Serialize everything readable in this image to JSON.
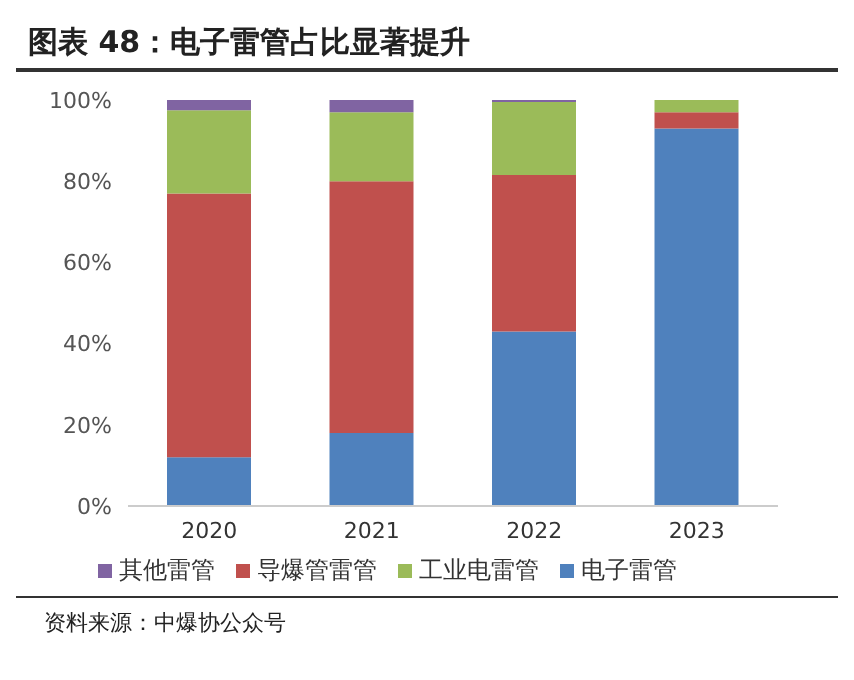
{
  "chart_data": {
    "type": "bar",
    "stacked": true,
    "title": "图表 48：电子雷管占比显著提升",
    "categories": [
      "2020",
      "2021",
      "2022",
      "2023"
    ],
    "series": [
      {
        "name": "电子雷管",
        "color": "#4f81bd",
        "values": [
          12,
          18,
          43,
          93
        ]
      },
      {
        "name": "导爆管雷管",
        "color": "#c0504d",
        "values": [
          65,
          62,
          38.5,
          4
        ]
      },
      {
        "name": "工业电雷管",
        "color": "#9bbb59",
        "values": [
          20.5,
          17,
          18,
          3
        ]
      },
      {
        "name": "其他雷管",
        "color": "#8064a2",
        "values": [
          2.5,
          3,
          0.5,
          0
        ]
      }
    ],
    "ylim": [
      0,
      100
    ],
    "yticks": [
      {
        "value": 0,
        "label": "0%"
      },
      {
        "value": 20,
        "label": "20%"
      },
      {
        "value": 40,
        "label": "40%"
      },
      {
        "value": 60,
        "label": "60%"
      },
      {
        "value": 80,
        "label": "80%"
      },
      {
        "value": 100,
        "label": "100%"
      }
    ],
    "grid": false,
    "legend": "bottom",
    "annotations": [
      "资料来源：中爆协公众号"
    ]
  }
}
